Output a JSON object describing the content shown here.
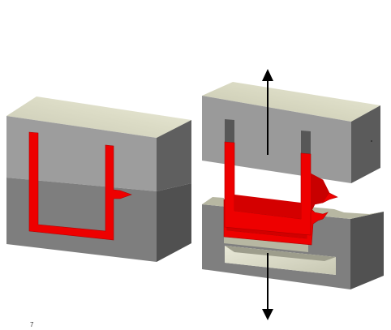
{
  "figure": {
    "corner_label": "7"
  },
  "colors": {
    "cavity_red": "#ee0000",
    "cavity_red_dark": "#b80000",
    "mold_front": "#9b9b9b",
    "mold_front_dark": "#7c7c7c",
    "mold_side": "#5e5e5e",
    "mold_side_dark": "#4e4e4e",
    "mold_top": "#d9d9c0",
    "arrow": "#000000"
  },
  "icons": {
    "up_arrow": "arrow-up-icon",
    "down_arrow": "arrow-down-icon"
  }
}
